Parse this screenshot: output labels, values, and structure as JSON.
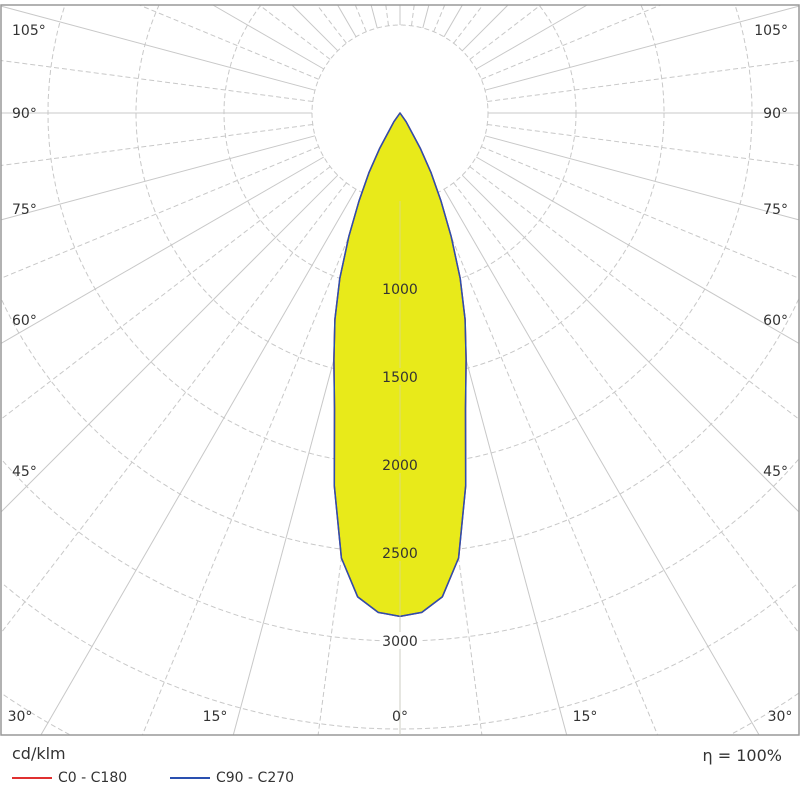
{
  "chart_data": {
    "type": "polar",
    "unit": "cd/klm",
    "efficiency_label": "η = 100%",
    "radial_ticks": [
      1000,
      1500,
      2000,
      2500,
      3000
    ],
    "radial_grid": [
      500,
      1000,
      1500,
      2000,
      2500,
      3000,
      3500,
      4000,
      4500
    ],
    "angle_labels_bottom": [
      "30°",
      "15°",
      "0°",
      "15°",
      "30°"
    ],
    "angle_labels_side": [
      "105°",
      "90°",
      "75°",
      "60°",
      "45°"
    ],
    "angles_deg": [
      0,
      2.5,
      5,
      7.5,
      10,
      12.5,
      15,
      17.5,
      20,
      22.5,
      25,
      27.5,
      30,
      35,
      40,
      90
    ],
    "series": [
      {
        "name": "C0 - C180",
        "color": "#e03030",
        "values": [
          2860,
          2840,
          2760,
          2550,
          2150,
          1720,
          1450,
          1230,
          1000,
          760,
          550,
          380,
          230,
          60,
          0,
          0
        ]
      },
      {
        "name": "C90 - C270",
        "color": "#2a50b0",
        "values": [
          2860,
          2840,
          2760,
          2550,
          2150,
          1720,
          1450,
          1230,
          1000,
          760,
          550,
          380,
          230,
          60,
          0,
          0
        ]
      }
    ],
    "fill_color": "#e8ea1a",
    "grid": true
  }
}
